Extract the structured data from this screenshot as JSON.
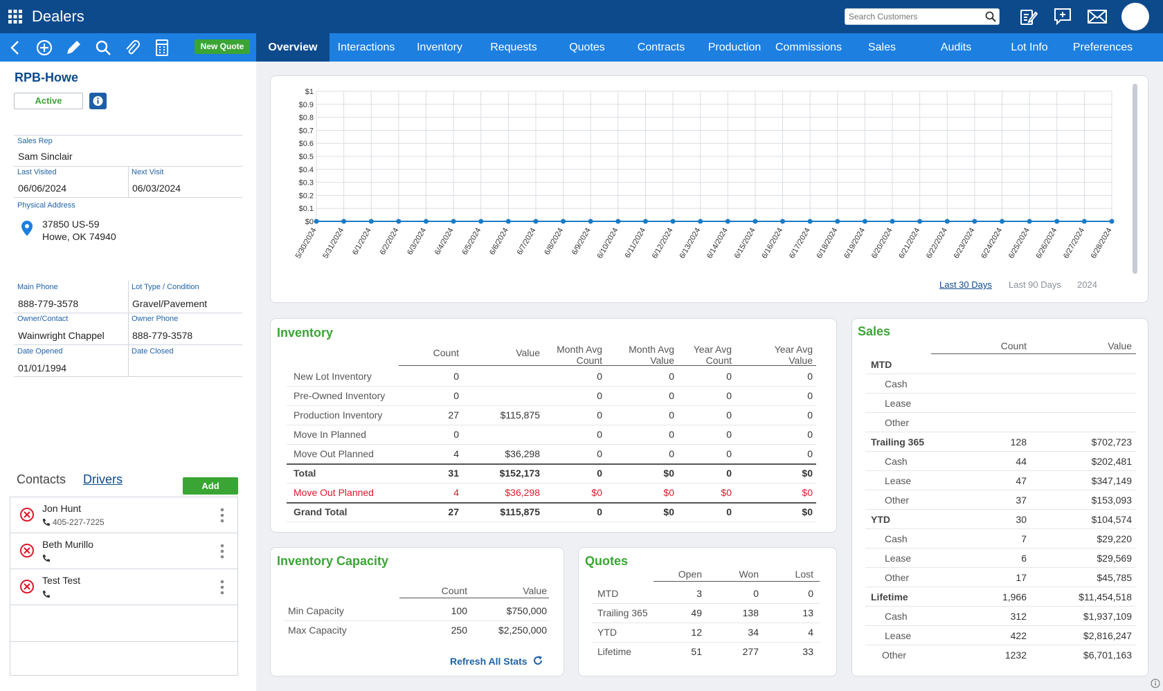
{
  "app": {
    "title": "Dealers",
    "search_placeholder": "Search Customers"
  },
  "toolbar": {
    "new_quote": "New Quote"
  },
  "tabs": [
    "Overview",
    "Interactions",
    "Inventory",
    "Requests",
    "Quotes",
    "Contracts",
    "Production",
    "Commissions",
    "Sales",
    "Audits",
    "Lot Info",
    "Preferences"
  ],
  "dealer": {
    "name": "RPB-Howe",
    "status": "Active",
    "sales_rep_label": "Sales Rep",
    "sales_rep": "Sam Sinclair",
    "last_visited_label": "Last Visited",
    "last_visited": "06/06/2024",
    "next_visit_label": "Next Visit",
    "next_visit": "06/03/2024",
    "address_label": "Physical Address",
    "address_line1": "37850 US-59",
    "address_line2": "Howe, OK 74940",
    "main_phone_label": "Main Phone",
    "main_phone": "888-779-3578",
    "lot_type_label": "Lot Type / Condition",
    "lot_type": "Gravel/Pavement",
    "owner_label": "Owner/Contact",
    "owner": "Wainwright Chappel",
    "owner_phone_label": "Owner Phone",
    "owner_phone": "888-779-3578",
    "date_opened_label": "Date Opened",
    "date_opened": "01/01/1994",
    "date_closed_label": "Date Closed",
    "date_closed": ""
  },
  "contacts": {
    "tab_contacts": "Contacts",
    "tab_drivers": "Drivers",
    "add": "Add",
    "items": [
      {
        "name": "Jon Hunt",
        "phone": "405-227-7225"
      },
      {
        "name": "Beth Murillo",
        "phone": ""
      },
      {
        "name": "Test Test",
        "phone": ""
      }
    ]
  },
  "chart_data": {
    "type": "line",
    "title": "",
    "x": [
      "5/30/2024",
      "5/31/2024",
      "6/1/2024",
      "6/2/2024",
      "6/3/2024",
      "6/4/2024",
      "6/5/2024",
      "6/6/2024",
      "6/7/2024",
      "6/8/2024",
      "6/9/2024",
      "6/10/2024",
      "6/11/2024",
      "6/12/2024",
      "6/13/2024",
      "6/14/2024",
      "6/15/2024",
      "6/16/2024",
      "6/17/2024",
      "6/18/2024",
      "6/19/2024",
      "6/20/2024",
      "6/21/2024",
      "6/22/2024",
      "6/23/2024",
      "6/24/2024",
      "6/25/2024",
      "6/26/2024",
      "6/27/2024",
      "6/28/2024"
    ],
    "values": [
      0,
      0,
      0,
      0,
      0,
      0,
      0,
      0,
      0,
      0,
      0,
      0,
      0,
      0,
      0,
      0,
      0,
      0,
      0,
      0,
      0,
      0,
      0,
      0,
      0,
      0,
      0,
      0,
      0,
      0
    ],
    "yticks": [
      "$0",
      "$0.1",
      "$0.2",
      "$0.3",
      "$0.4",
      "$0.5",
      "$0.6",
      "$0.7",
      "$0.8",
      "$0.9",
      "$1"
    ],
    "ylim": [
      0,
      1
    ],
    "grid": true,
    "ranges": [
      "Last 30 Days",
      "Last 90 Days",
      "2024"
    ],
    "line_color": "#1a7bc4"
  },
  "inventory": {
    "title": "Inventory",
    "headers": [
      "Count",
      "Value",
      "Month Avg Count",
      "Month Avg Value",
      "Year Avg Count",
      "Year Avg Value"
    ],
    "rows": [
      {
        "label": "New Lot Inventory",
        "cells": [
          "0",
          "",
          "0",
          "0",
          "0",
          "0"
        ]
      },
      {
        "label": "Pre-Owned Inventory",
        "cells": [
          "0",
          "",
          "0",
          "0",
          "0",
          "0"
        ]
      },
      {
        "label": "Production Inventory",
        "cells": [
          "27",
          "$115,875",
          "0",
          "0",
          "0",
          "0"
        ]
      },
      {
        "label": "Move In Planned",
        "cells": [
          "0",
          "",
          "0",
          "0",
          "0",
          "0"
        ]
      },
      {
        "label": "Move Out Planned",
        "cells": [
          "4",
          "$36,298",
          "0",
          "0",
          "0",
          "0"
        ]
      },
      {
        "label": "Total",
        "cells": [
          "31",
          "$152,173",
          "0",
          "$0",
          "0",
          "$0"
        ]
      },
      {
        "label": "Move Out Planned",
        "cells": [
          "4",
          "$36,298",
          "$0",
          "$0",
          "$0",
          "$0"
        ]
      },
      {
        "label": "Grand Total",
        "cells": [
          "27",
          "$115,875",
          "0",
          "$0",
          "0",
          "$0"
        ]
      }
    ]
  },
  "capacity": {
    "title": "Inventory Capacity",
    "headers": [
      "Count",
      "Value"
    ],
    "rows": [
      {
        "label": "Min Capacity",
        "cells": [
          "100",
          "$750,000"
        ]
      },
      {
        "label": "Max Capacity",
        "cells": [
          "250",
          "$2,250,000"
        ]
      }
    ],
    "refresh": "Refresh All Stats"
  },
  "quotes": {
    "title": "Quotes",
    "headers": [
      "Open",
      "Won",
      "Lost"
    ],
    "rows": [
      {
        "label": "MTD",
        "cells": [
          "3",
          "0",
          "0"
        ]
      },
      {
        "label": "Trailing 365",
        "cells": [
          "49",
          "138",
          "13"
        ]
      },
      {
        "label": "YTD",
        "cells": [
          "12",
          "34",
          "4"
        ]
      },
      {
        "label": "Lifetime",
        "cells": [
          "51",
          "277",
          "33"
        ]
      }
    ]
  },
  "sales": {
    "title": "Sales",
    "headers": [
      "Count",
      "Value"
    ],
    "rows": [
      {
        "label": "MTD",
        "cells": [
          "",
          ""
        ],
        "group": true
      },
      {
        "label": "Cash",
        "cells": [
          "",
          ""
        ]
      },
      {
        "label": "Lease",
        "cells": [
          "",
          ""
        ]
      },
      {
        "label": "Other",
        "cells": [
          "",
          ""
        ]
      },
      {
        "label": "Trailing 365",
        "cells": [
          "128",
          "$702,723"
        ],
        "group": true
      },
      {
        "label": "Cash",
        "cells": [
          "44",
          "$202,481"
        ]
      },
      {
        "label": "Lease",
        "cells": [
          "47",
          "$347,149"
        ]
      },
      {
        "label": "Other",
        "cells": [
          "37",
          "$153,093"
        ]
      },
      {
        "label": "YTD",
        "cells": [
          "30",
          "$104,574"
        ],
        "group": true
      },
      {
        "label": "Cash",
        "cells": [
          "7",
          "$29,220"
        ]
      },
      {
        "label": "Lease",
        "cells": [
          "6",
          "$29,569"
        ]
      },
      {
        "label": "Other",
        "cells": [
          "17",
          "$45,785"
        ]
      },
      {
        "label": "Lifetime",
        "cells": [
          "1,966",
          "$11,454,518"
        ],
        "group": true
      },
      {
        "label": "Cash",
        "cells": [
          "312",
          "$1,937,109"
        ]
      },
      {
        "label": "Lease",
        "cells": [
          "422",
          "$2,816,247"
        ]
      },
      {
        "label": "Other",
        "cells": [
          "1232",
          "$6,701,163"
        ]
      }
    ]
  }
}
